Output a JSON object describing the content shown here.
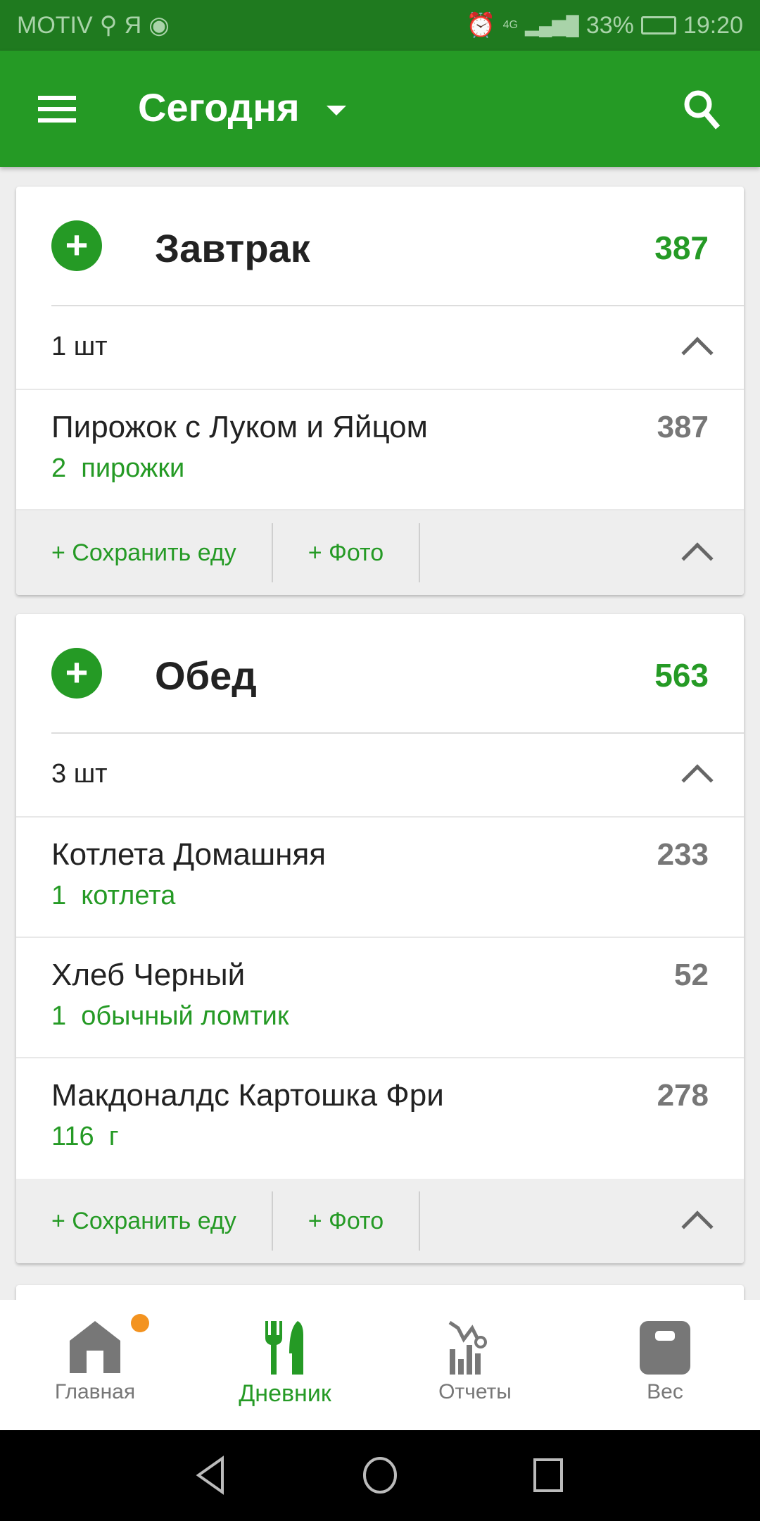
{
  "status_bar": {
    "carrier": "MOTIV",
    "network": "4G",
    "battery": "33%",
    "time": "19:20",
    "icons": [
      "search-icon",
      "yandex-icon",
      "chrome-icon",
      "alarm-icon",
      "signal-icon",
      "battery-icon"
    ]
  },
  "app_bar": {
    "title": "Сегодня",
    "icons": [
      "menu-icon",
      "dropdown-icon",
      "search-icon"
    ]
  },
  "meals": [
    {
      "name": "Завтрак",
      "calories": "387",
      "count": "1 шт",
      "items": [
        {
          "name": "Пирожок с Луком и Яйцом",
          "portion": "2  пирожки",
          "calories": "387"
        }
      ],
      "save_label": "+ Сохранить еду",
      "photo_label": "+ Фото"
    },
    {
      "name": "Обед",
      "calories": "563",
      "count": "3 шт",
      "items": [
        {
          "name": "Котлета Домашняя",
          "portion": "1  котлета",
          "calories": "233"
        },
        {
          "name": "Хлеб Черный",
          "portion": "1  обычный ломтик",
          "calories": "52"
        },
        {
          "name": "Макдоналдс Картошка Фри",
          "portion": "116  г",
          "calories": "278"
        }
      ],
      "save_label": "+ Сохранить еду",
      "photo_label": "+ Фото"
    }
  ],
  "bottom_nav": {
    "items": [
      {
        "label": "Главная",
        "icon": "home-icon",
        "badge": true
      },
      {
        "label": "Дневник",
        "icon": "fork-knife-icon",
        "active": true
      },
      {
        "label": "Отчеты",
        "icon": "chart-icon"
      },
      {
        "label": "Вес",
        "icon": "scale-icon"
      }
    ]
  },
  "colors": {
    "primary": "#259a25",
    "status_bar": "#1f7a1f",
    "badge": "#f39320"
  }
}
